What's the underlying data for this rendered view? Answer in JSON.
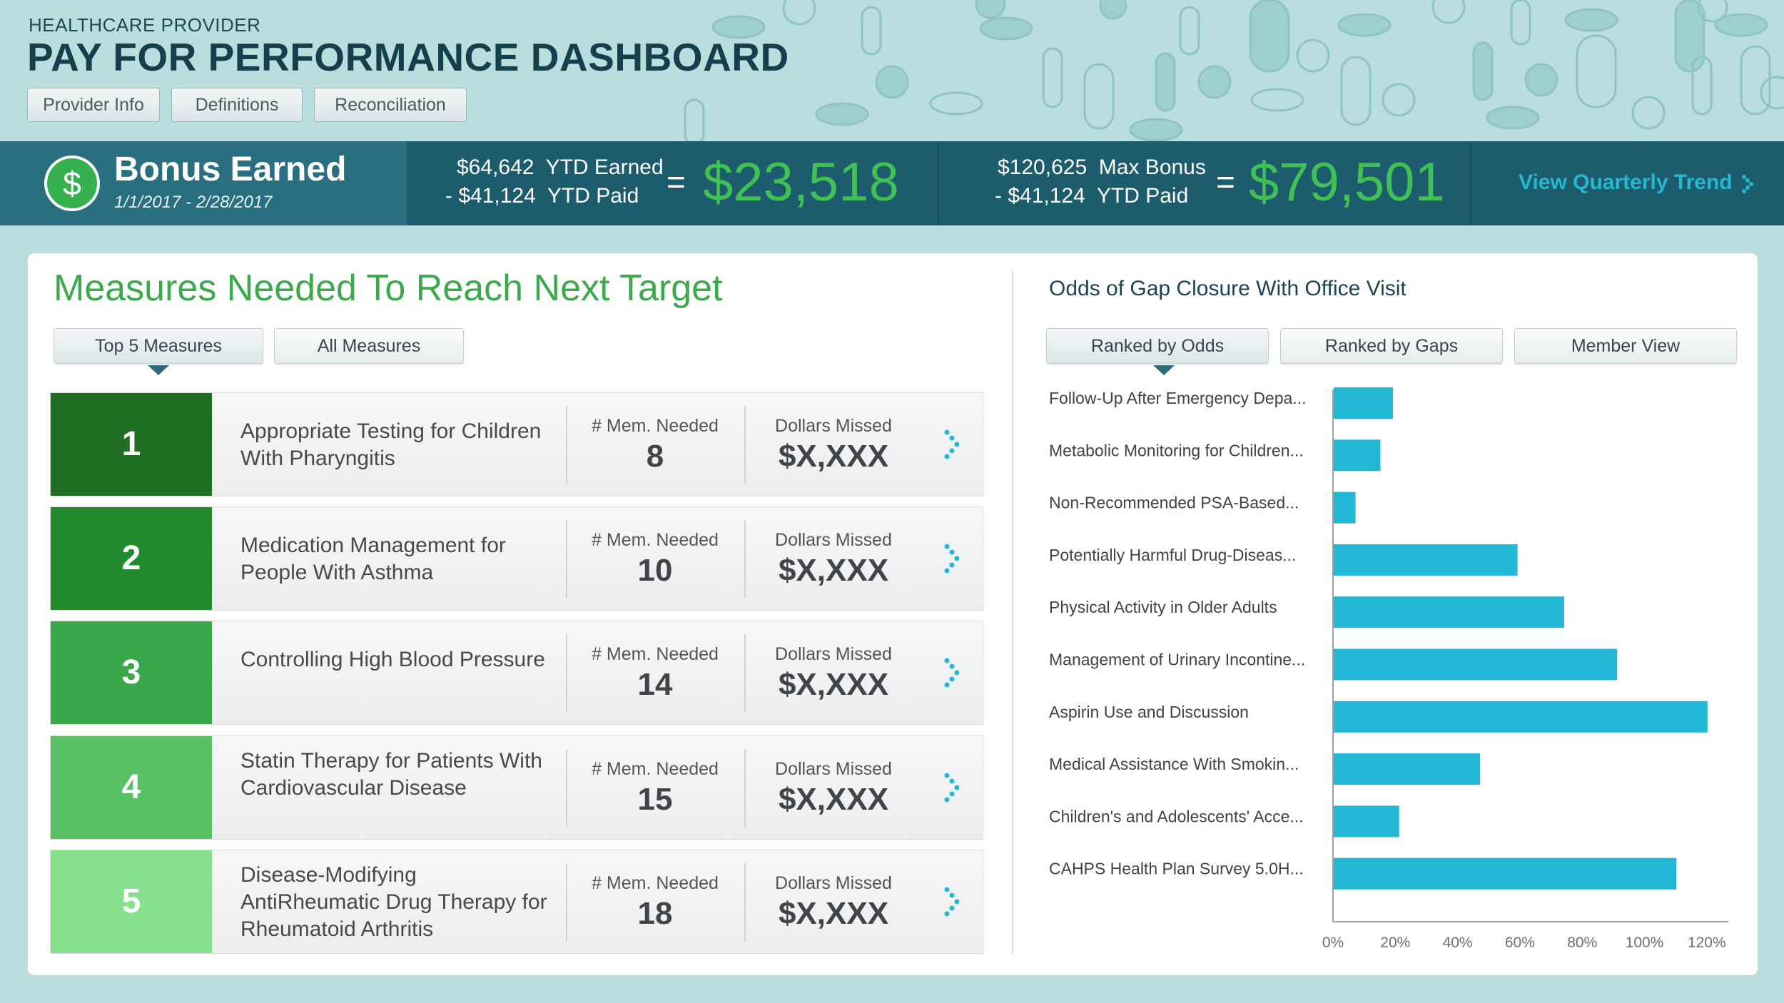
{
  "header": {
    "kicker": "HEALTHCARE PROVIDER",
    "title": "PAY FOR PERFORMANCE DASHBOARD",
    "buttons": [
      "Provider Info",
      "Definitions",
      "Reconciliation"
    ]
  },
  "bonus": {
    "title": "Bonus Earned",
    "icon_glyph": "$",
    "date_range": "1/1/2017 - 2/28/2017",
    "earned": {
      "line1": "$64,642  YTD Earned",
      "line2": "- $41,124  YTD Paid",
      "equals": "=",
      "value": "$23,518"
    },
    "max": {
      "line1": "$120,625  Max Bonus",
      "line2": "- $41,124  YTD Paid",
      "equals": "=",
      "value": "$79,501"
    },
    "trend_link": "View Quarterly Trend"
  },
  "measures": {
    "title": "Measures Needed To Reach Next Target",
    "tabs": [
      "Top 5 Measures",
      "All Measures"
    ],
    "active_tab": "Top 5 Measures",
    "col_needed": "# Mem. Needed",
    "col_missed": "Dollars Missed",
    "rows": [
      {
        "rank": "1",
        "name": "Appropriate Testing for Children With Pharyngitis",
        "needed": "8",
        "missed": "$X,XXX",
        "color": "#1f6e24"
      },
      {
        "rank": "2",
        "name": "Medication Management for People With Asthma",
        "needed": "10",
        "missed": "$X,XXX",
        "color": "#238a2e"
      },
      {
        "rank": "3",
        "name": "Controlling High Blood Pressure",
        "needed": "14",
        "missed": "$X,XXX",
        "color": "#3aa84a"
      },
      {
        "rank": "4",
        "name": "Statin Therapy for Patients With Cardiovascular Disease",
        "needed": "15",
        "missed": "$X,XXX",
        "color": "#59c164"
      },
      {
        "rank": "5",
        "name": "Disease-Modifying AntiRheumatic Drug Therapy for Rheumatoid Arthritis",
        "needed": "18",
        "missed": "$X,XXX",
        "color": "#86e08e"
      }
    ]
  },
  "odds": {
    "title": "Odds of Gap Closure With Office Visit",
    "tabs": [
      "Ranked by Odds",
      "Ranked by Gaps",
      "Member View"
    ],
    "active_tab": "Ranked by Odds"
  },
  "chart_data": {
    "type": "bar",
    "orientation": "horizontal",
    "categories": [
      "Follow-Up After Emergency Depa...",
      "Metabolic Monitoring for Children...",
      "Non-Recommended PSA-Based...",
      "Potentially Harmful Drug-Diseas...",
      "Physical Activity in Older Adults",
      "Management of Urinary Incontine...",
      "Aspirin Use and Discussion",
      "Medical Assistance With Smokin...",
      "Children's and Adolescents' Acce...",
      "CAHPS Health Plan Survey 5.0H..."
    ],
    "values": [
      19,
      15,
      7,
      59,
      74,
      91,
      120,
      47,
      21,
      110
    ],
    "xlim": [
      0,
      126
    ],
    "xticks": [
      "0%",
      "20%",
      "40%",
      "60%",
      "80%",
      "100%",
      "120%"
    ],
    "xtick_values": [
      0,
      20,
      40,
      60,
      80,
      100,
      120
    ],
    "bar_color": "#23b7d6",
    "grid": false
  },
  "colors": {
    "accent_green": "#3caa4c",
    "band_dark": "#1d5c6c",
    "link_cyan": "#25b8cf"
  }
}
